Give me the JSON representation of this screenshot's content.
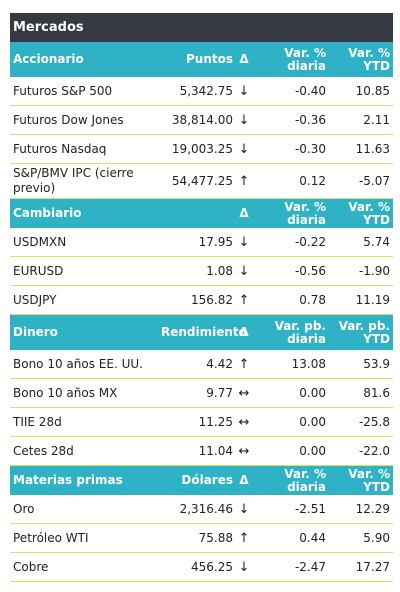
{
  "title": "Mercados",
  "accionario": {
    "headers": {
      "name": "Accionario",
      "value": "Puntos",
      "arrow": "Δ",
      "daily": "Var. % diaria",
      "ytd": "Var. % YTD"
    },
    "rows": [
      {
        "name": "Futuros S&P 500",
        "value": "5,342.75",
        "dir": "down",
        "arrow": "↓",
        "daily": "-0.40",
        "ytd": "10.85"
      },
      {
        "name": "Futuros Dow Jones",
        "value": "38,814.00",
        "dir": "down",
        "arrow": "↓",
        "daily": "-0.36",
        "ytd": "2.11"
      },
      {
        "name": "Futuros Nasdaq",
        "value": "19,003.25",
        "dir": "down",
        "arrow": "↓",
        "daily": "-0.30",
        "ytd": "11.63"
      },
      {
        "name": "S&P/BMV IPC (cierre previo)",
        "value": "54,477.25",
        "dir": "up",
        "arrow": "↑",
        "daily": "0.12",
        "ytd": "-5.07"
      }
    ]
  },
  "cambiario": {
    "headers": {
      "name": "Cambiario",
      "value": "",
      "arrow": "Δ",
      "daily": "Var. % diaria",
      "ytd": "Var. % YTD"
    },
    "rows": [
      {
        "name": "USDMXN",
        "value": "17.95",
        "dir": "up",
        "arrow": "↓",
        "daily": "-0.22",
        "ytd": "5.74"
      },
      {
        "name": "EURUSD",
        "value": "1.08",
        "dir": "down",
        "arrow": "↓",
        "daily": "-0.56",
        "ytd": "-1.90"
      },
      {
        "name": "USDJPY",
        "value": "156.82",
        "dir": "down",
        "arrow": "↑",
        "daily": "0.78",
        "ytd": "11.19"
      }
    ]
  },
  "dinero": {
    "headers": {
      "name": "Dinero",
      "value": "Rendimiento",
      "arrow": "Δ",
      "daily": "Var. pb. diaria",
      "ytd": "Var. pb. YTD"
    },
    "rows": [
      {
        "name": "Bono 10 años EE. UU.",
        "value": "4.42",
        "dir": "down",
        "arrow": "↑",
        "daily": "13.08",
        "ytd": "53.9"
      },
      {
        "name": "Bono 10 años MX",
        "value": "9.77",
        "dir": "flat",
        "arrow": "↔",
        "daily": "0.00",
        "ytd": "81.6"
      },
      {
        "name": "TIIE 28d",
        "value": "11.25",
        "dir": "flat",
        "arrow": "↔",
        "daily": "0.00",
        "ytd": "-25.8"
      },
      {
        "name": "Cetes 28d",
        "value": "11.04",
        "dir": "flat",
        "arrow": "↔",
        "daily": "0.00",
        "ytd": "-22.0"
      }
    ]
  },
  "materias": {
    "headers": {
      "name": "Materias primas",
      "value": "Dólares",
      "arrow": "Δ",
      "daily": "Var. % diaria",
      "ytd": "Var. % YTD"
    },
    "rows": [
      {
        "name": "Oro",
        "value": "2,316.46",
        "dir": "down",
        "arrow": "↓",
        "daily": "-2.51",
        "ytd": "12.29"
      },
      {
        "name": "Petróleo WTI",
        "value": "75.88",
        "dir": "up",
        "arrow": "↑",
        "daily": "0.44",
        "ytd": "5.90"
      },
      {
        "name": "Cobre",
        "value": "456.25",
        "dir": "down",
        "arrow": "↓",
        "daily": "-2.47",
        "ytd": "17.27"
      }
    ]
  }
}
